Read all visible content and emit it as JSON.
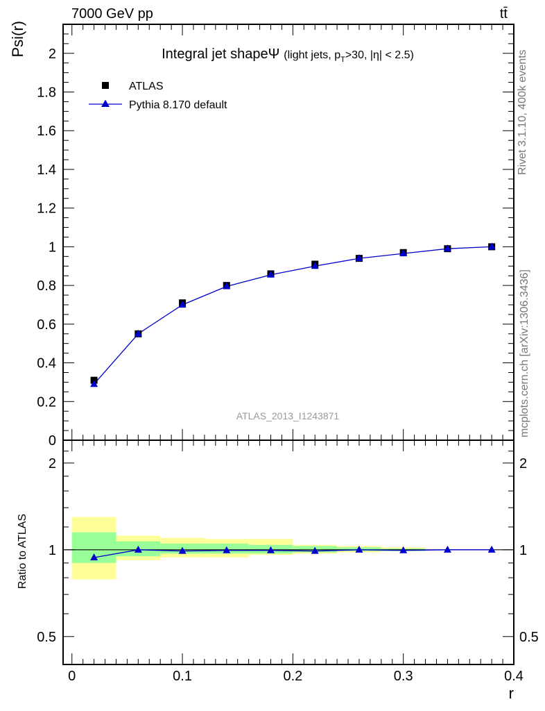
{
  "header": {
    "energy": "7000 GeV pp",
    "process": "tt̄"
  },
  "side_labels": {
    "rivet": "Rivet 3.1.10,  400k events",
    "mcplots": "mcplots.cern.ch [arXiv:1306.3436]"
  },
  "chart_data": {
    "type": "line",
    "title": "Integral jet shape",
    "title_symbol": "Ψ",
    "cuts": {
      "open": "(light jets, p",
      "sub": "T",
      "close": ">30, |η| < 2.5)"
    },
    "ylabel": "Psi(r)",
    "ratio_ylabel": "Ratio to ATLAS",
    "xlabel": "r",
    "analysis_tag": "ATLAS_2013_I1243871",
    "xlim": [
      -0.008,
      0.4
    ],
    "ylim": [
      0,
      2.15
    ],
    "ratio_ylim": [
      0.4,
      2.4
    ],
    "ratio_scale": "log",
    "x_ticks": [
      "0",
      "0.1",
      "0.2",
      "0.3",
      "0.4"
    ],
    "y_ticks": [
      "0",
      "0.2",
      "0.4",
      "0.6",
      "0.8",
      "1",
      "1.2",
      "1.4",
      "1.6",
      "1.8",
      "2"
    ],
    "ratio_ticks": [
      "0.5",
      "1",
      "2"
    ],
    "legend_position": "top-left",
    "series": [
      {
        "name": "ATLAS",
        "marker": "square",
        "color": "#000000",
        "x": [
          0.02,
          0.06,
          0.1,
          0.14,
          0.18,
          0.22,
          0.26,
          0.3,
          0.34,
          0.38
        ],
        "y": [
          0.31,
          0.55,
          0.71,
          0.8,
          0.86,
          0.91,
          0.94,
          0.97,
          0.99,
          1.0
        ]
      },
      {
        "name": "Pythia 8.170 default",
        "marker": "triangle",
        "color": "#0000cc",
        "x": [
          0.02,
          0.06,
          0.1,
          0.14,
          0.18,
          0.22,
          0.26,
          0.3,
          0.34,
          0.38
        ],
        "y": [
          0.29,
          0.55,
          0.7,
          0.795,
          0.855,
          0.9,
          0.94,
          0.965,
          0.99,
          1.0
        ]
      }
    ],
    "ratio": {
      "x": [
        0.02,
        0.06,
        0.1,
        0.14,
        0.18,
        0.22,
        0.26,
        0.3,
        0.34,
        0.38
      ],
      "y": [
        0.94,
        1.0,
        0.99,
        0.995,
        0.995,
        0.99,
        1.0,
        0.995,
        1.0,
        1.0
      ]
    },
    "uncertainty_bins": {
      "edges": [
        0.0,
        0.04,
        0.08,
        0.12,
        0.16,
        0.2,
        0.24,
        0.28,
        0.32,
        0.36,
        0.4
      ],
      "outer_lo": [
        0.79,
        0.92,
        0.94,
        0.94,
        0.96,
        0.97,
        0.98,
        0.99,
        1.0,
        1.0
      ],
      "outer_hi": [
        1.3,
        1.12,
        1.1,
        1.09,
        1.09,
        1.04,
        1.03,
        1.02,
        1.0,
        1.0
      ],
      "inner_lo": [
        0.9,
        0.95,
        0.97,
        0.97,
        0.97,
        0.98,
        0.99,
        0.99,
        1.0,
        1.0
      ],
      "inner_hi": [
        1.15,
        1.07,
        1.05,
        1.05,
        1.04,
        1.03,
        1.02,
        1.01,
        1.0,
        1.0
      ],
      "outer_color": "#ffff99",
      "inner_color": "#99ff99"
    }
  }
}
